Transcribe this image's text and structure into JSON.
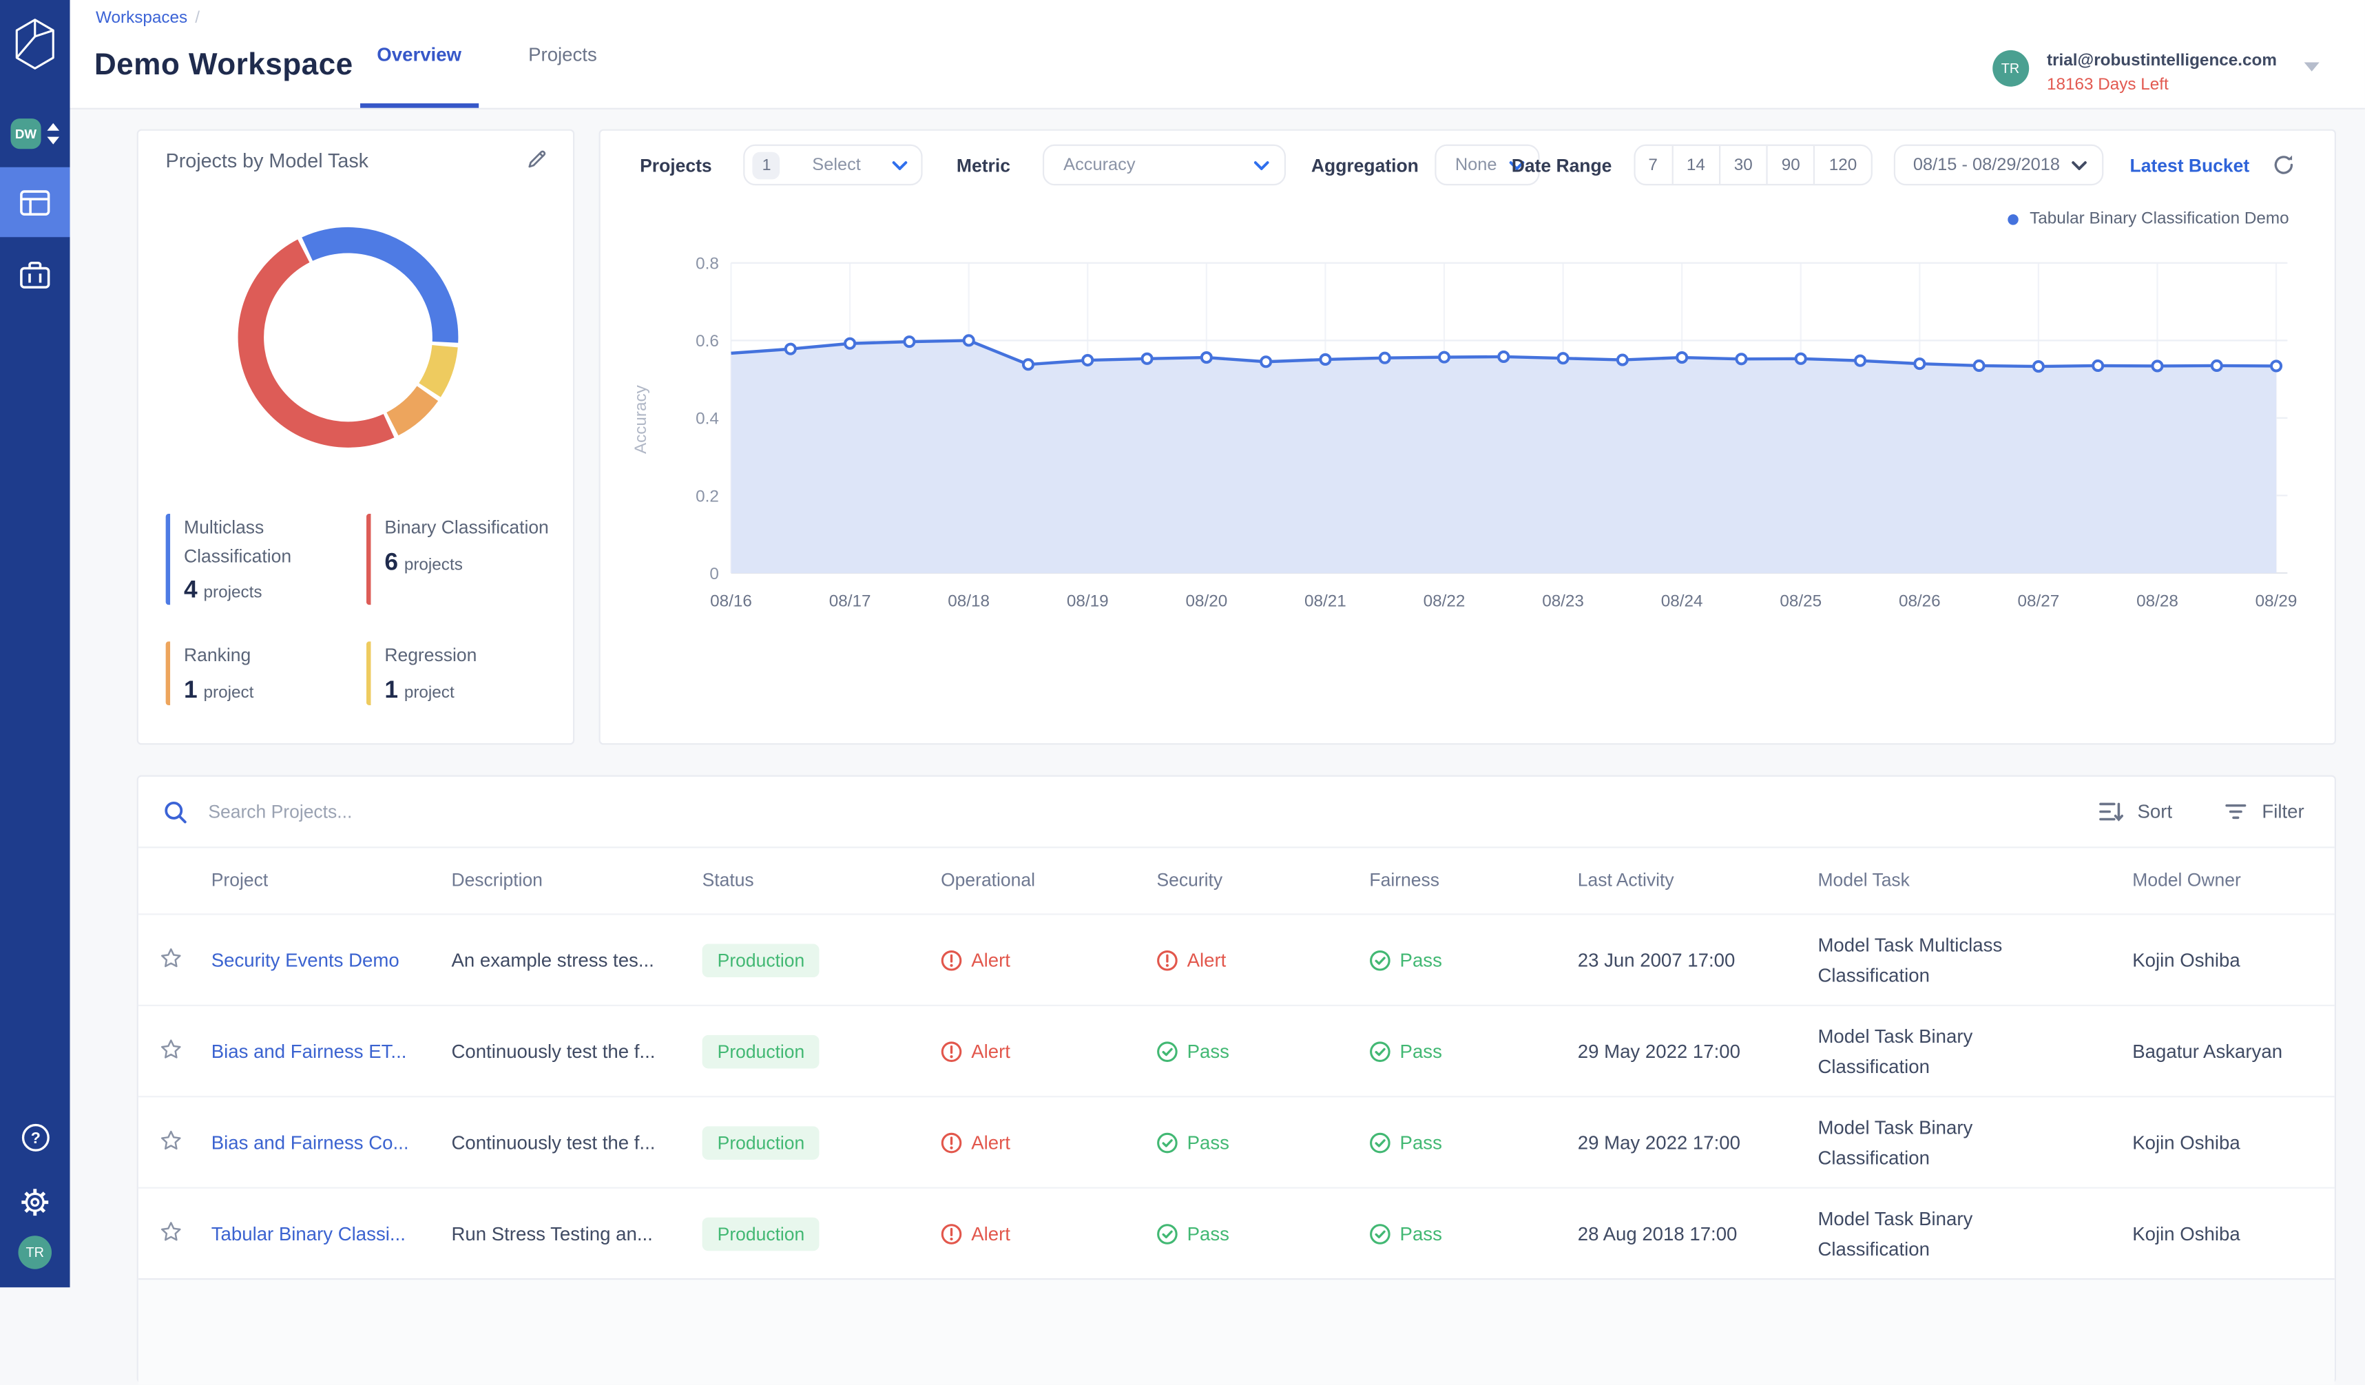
{
  "colors": {
    "sidebar": "#1e3c8c",
    "sidebar_active": "#567fe3",
    "accent_blue": "#3b63d6",
    "teal_avatar": "#4aa091",
    "alert_red": "#e2574c",
    "pass_green": "#42b873",
    "chart_line": "#4472dd",
    "chart_fill": "#dde5f8"
  },
  "sidebar": {
    "workspace_badge": "DW",
    "user_avatar": "TR"
  },
  "header": {
    "breadcrumb": "Workspaces",
    "breadcrumb_separator": "/",
    "title": "Demo Workspace",
    "tabs": [
      {
        "label": "Overview"
      },
      {
        "label": "Projects"
      }
    ],
    "user": {
      "avatar": "TR",
      "email": "trial@robustintelligence.com",
      "trial_remaining": "18163 Days Left"
    }
  },
  "donut_card": {
    "title": "Projects by Model Task",
    "legend": [
      {
        "label": "Multiclass Classification",
        "count": "4",
        "unit": "projects",
        "color": "#4e7be4"
      },
      {
        "label": "Binary Classification",
        "count": "6",
        "unit": "projects",
        "color": "#dd5c57"
      },
      {
        "label": "Ranking",
        "count": "1",
        "unit": "project",
        "color": "#eda55d"
      },
      {
        "label": "Regression",
        "count": "1",
        "unit": "project",
        "color": "#eecb5f"
      }
    ]
  },
  "chart_card": {
    "controls": {
      "projects_label": "Projects",
      "projects_count": "1",
      "projects_value": "Select",
      "metric_label": "Metric",
      "metric_value": "Accuracy",
      "aggregation_label": "Aggregation",
      "aggregation_value": "None",
      "date_range_label": "Date Range",
      "date_presets": [
        "7",
        "14",
        "30",
        "90",
        "120"
      ],
      "date_value": "08/15 - 08/29/2018",
      "latest_bucket_label": "Latest Bucket"
    }
  },
  "chart_data": [
    {
      "type": "pie",
      "donut": true,
      "title": "Projects by Model Task",
      "labels": [
        "Multiclass Classification",
        "Binary Classification",
        "Ranking",
        "Regression"
      ],
      "values": [
        4,
        6,
        1,
        1
      ],
      "colors": [
        "#4e7be4",
        "#dd5c57",
        "#eda55d",
        "#eecb5f"
      ],
      "clockwise_draw_order": [
        0,
        3,
        2,
        1
      ],
      "start_angle_deg": -26
    },
    {
      "type": "area",
      "series_name": "Tabular Binary Classification Demo",
      "xlabel": "",
      "ylabel": "Accuracy",
      "ylim": [
        0,
        0.8
      ],
      "y_ticks": [
        0,
        0.2,
        0.4,
        0.6,
        0.8
      ],
      "x_tick_labels": [
        "08/16",
        "08/17",
        "08/18",
        "08/19",
        "08/20",
        "08/21",
        "08/22",
        "08/23",
        "08/24",
        "08/25",
        "08/26",
        "08/27",
        "08/28",
        "08/29"
      ],
      "points_per_day": 2,
      "values": [
        0.567,
        0.578,
        0.592,
        0.597,
        0.6,
        0.538,
        0.549,
        0.553,
        0.556,
        0.545,
        0.551,
        0.555,
        0.557,
        0.558,
        0.554,
        0.55,
        0.556,
        0.552,
        0.553,
        0.548,
        0.54,
        0.535,
        0.533,
        0.535,
        0.534,
        0.535,
        0.534
      ],
      "line_color": "#4472dd",
      "fill_color": "#dde5f8",
      "grid": true,
      "legend_position": "top-right"
    }
  ],
  "table": {
    "search_placeholder": "Search Projects...",
    "sort_label": "Sort",
    "filter_label": "Filter",
    "columns": [
      "Project",
      "Description",
      "Status",
      "Operational",
      "Security",
      "Fairness",
      "Last Activity",
      "Model Task",
      "Model Owner"
    ],
    "rows": [
      {
        "project": "Security Events Demo",
        "description": "An example stress tes...",
        "status": "Production",
        "operational": "Alert",
        "security": "Alert",
        "fairness": "Pass",
        "last_activity": "23 Jun 2007 17:00",
        "model_task": "Model Task Multiclass Classification",
        "model_owner": "Kojin Oshiba"
      },
      {
        "project": "Bias and Fairness ET...",
        "description": "Continuously test the f...",
        "status": "Production",
        "operational": "Alert",
        "security": "Pass",
        "fairness": "Pass",
        "last_activity": "29 May 2022 17:00",
        "model_task": "Model Task Binary Classification",
        "model_owner": "Bagatur Askaryan"
      },
      {
        "project": "Bias and Fairness Co...",
        "description": "Continuously test the f...",
        "status": "Production",
        "operational": "Alert",
        "security": "Pass",
        "fairness": "Pass",
        "last_activity": "29 May 2022 17:00",
        "model_task": "Model Task Binary Classification",
        "model_owner": "Kojin Oshiba"
      },
      {
        "project": "Tabular Binary Classi...",
        "description": "Run Stress Testing an...",
        "status": "Production",
        "operational": "Alert",
        "security": "Pass",
        "fairness": "Pass",
        "last_activity": "28 Aug 2018 17:00",
        "model_task": "Model Task Binary Classification",
        "model_owner": "Kojin Oshiba"
      }
    ]
  }
}
